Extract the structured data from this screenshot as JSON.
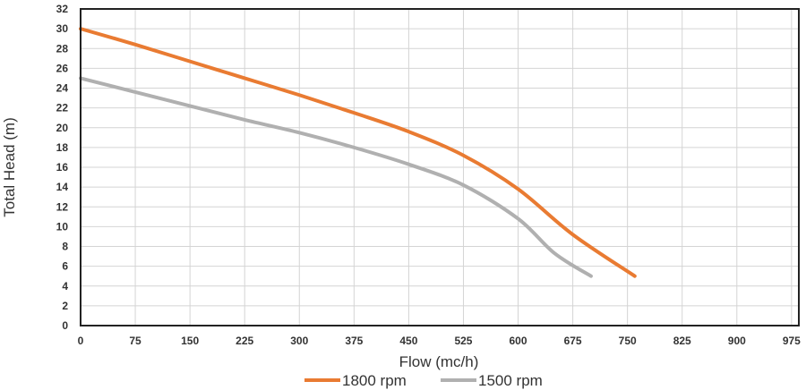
{
  "chart_data": {
    "type": "line",
    "xlabel": "Flow (mc/h)",
    "ylabel": "Total Head (m)",
    "xlim": [
      0,
      985
    ],
    "ylim": [
      0,
      32
    ],
    "x_ticks": [
      0,
      75,
      150,
      225,
      300,
      375,
      450,
      525,
      600,
      675,
      750,
      825,
      900,
      975
    ],
    "y_ticks": [
      0,
      2,
      4,
      6,
      8,
      10,
      12,
      14,
      16,
      18,
      20,
      22,
      24,
      26,
      28,
      30,
      32
    ],
    "grid": true,
    "legend_position": "bottom",
    "series": [
      {
        "name": "1800 rpm",
        "color": "#e97b32",
        "points": [
          [
            0,
            30
          ],
          [
            75,
            28.4
          ],
          [
            150,
            26.7
          ],
          [
            225,
            25.0
          ],
          [
            300,
            23.3
          ],
          [
            375,
            21.5
          ],
          [
            450,
            19.6
          ],
          [
            525,
            17.2
          ],
          [
            600,
            13.8
          ],
          [
            675,
            9.2
          ],
          [
            760,
            5.0
          ]
        ]
      },
      {
        "name": "1500 rpm",
        "color": "#b0b0b0",
        "points": [
          [
            0,
            25
          ],
          [
            75,
            23.6
          ],
          [
            150,
            22.2
          ],
          [
            225,
            20.8
          ],
          [
            300,
            19.5
          ],
          [
            375,
            18.0
          ],
          [
            450,
            16.3
          ],
          [
            525,
            14.2
          ],
          [
            600,
            10.8
          ],
          [
            650,
            7.3
          ],
          [
            700,
            5.0
          ]
        ]
      }
    ]
  }
}
